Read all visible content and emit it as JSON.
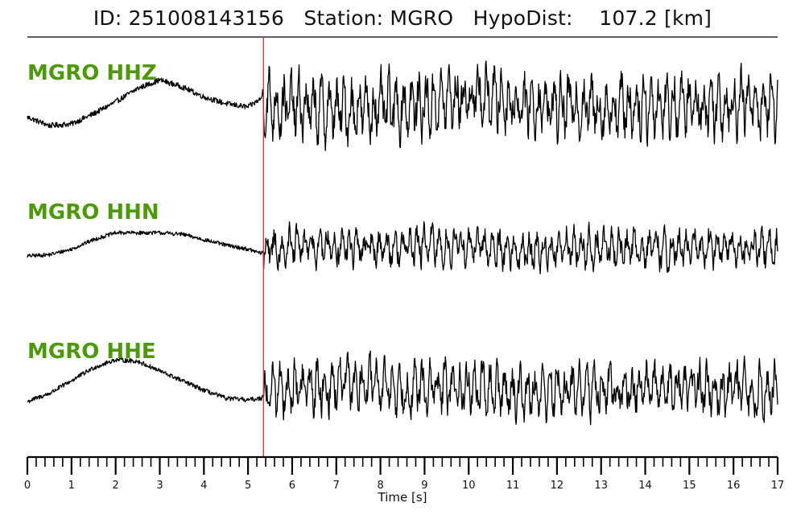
{
  "header": {
    "id_label": "ID: 251008143156",
    "station_label": "Station: MGRO",
    "hypodist_label": "HypoDist:",
    "hypodist_value": "107.2 [km]"
  },
  "chart_data": {
    "type": "line",
    "title": "ID: 251008143156   Station: MGRO   HypoDist:    107.2 [km]",
    "xlabel": "Time [s]",
    "ylabel": "",
    "xlim": [
      0,
      17
    ],
    "x_ticks": [
      0,
      1,
      2,
      3,
      4,
      5,
      6,
      7,
      8,
      9,
      10,
      11,
      12,
      13,
      14,
      15,
      16,
      17
    ],
    "minor_tick_step": 0.2,
    "grid": false,
    "legend": "none",
    "pick_time": 5.35,
    "pick_color": "#e8281e",
    "trace_color": "#000000",
    "label_color": "#4c9a0a",
    "series": [
      {
        "name": "MGRO HHZ",
        "x": [
          0,
          0.5,
          1,
          1.5,
          2,
          2.5,
          3,
          3.5,
          4,
          4.5,
          5,
          5.3,
          5.35,
          5.5,
          6,
          6.5,
          7,
          7.5,
          8,
          8.5,
          9,
          9.5,
          10,
          10.5,
          11,
          11.5,
          12,
          12.5,
          13,
          13.5,
          14,
          14.5,
          15,
          15.5,
          16,
          16.5,
          17
        ],
        "values": [
          -0.3,
          -0.55,
          -0.5,
          -0.2,
          0.15,
          0.55,
          0.8,
          0.6,
          0.3,
          0.1,
          0.0,
          0.25,
          0.6,
          0.3,
          0.0,
          -0.2,
          -0.3,
          -0.1,
          -0.2,
          0.1,
          0.2,
          0.6,
          0.9,
          0.9,
          0.5,
          0.2,
          0.1,
          0.2,
          -0.05,
          0.1,
          0.3,
          0.2,
          0.1,
          0.3,
          0.4,
          0.3,
          0.35
        ],
        "noise_pre": 0.08,
        "noise_post": 1.0
      },
      {
        "name": "MGRO HHN",
        "x": [
          0,
          0.5,
          1,
          1.5,
          2,
          2.5,
          3,
          3.5,
          4,
          4.5,
          5,
          5.3,
          5.35,
          5.5,
          6,
          6.5,
          7,
          7.5,
          8,
          8.5,
          9,
          9.5,
          10,
          10.5,
          11,
          11.5,
          12,
          12.5,
          13,
          13.5,
          14,
          14.5,
          15,
          15.5,
          16,
          16.5,
          17
        ],
        "values": [
          -0.3,
          -0.25,
          -0.05,
          0.3,
          0.55,
          0.55,
          0.55,
          0.5,
          0.3,
          0.1,
          -0.05,
          -0.2,
          -0.15,
          0.0,
          0.05,
          0.1,
          0.15,
          0.05,
          0.1,
          0.2,
          0.25,
          0.2,
          0.1,
          0.0,
          -0.3,
          -0.4,
          -0.1,
          0.0,
          0.0,
          0.05,
          0.0,
          -0.2,
          -0.1,
          0.0,
          0.0,
          -0.05,
          -0.1
        ],
        "noise_pre": 0.07,
        "noise_post": 0.75
      },
      {
        "name": "MGRO HHE",
        "x": [
          0,
          0.5,
          1,
          1.5,
          2,
          2.5,
          3,
          3.5,
          4,
          4.5,
          5,
          5.3,
          5.35,
          5.5,
          6,
          6.5,
          7,
          7.5,
          8,
          8.5,
          9,
          9.5,
          10,
          10.5,
          11,
          11.5,
          12,
          12.5,
          13,
          13.5,
          14,
          14.5,
          15,
          15.5,
          16,
          16.5,
          17
        ],
        "values": [
          -0.35,
          -0.1,
          0.3,
          0.7,
          0.95,
          0.9,
          0.6,
          0.3,
          0.0,
          -0.25,
          -0.3,
          -0.25,
          -0.1,
          0.0,
          0.2,
          0.3,
          0.45,
          0.55,
          0.4,
          0.3,
          0.1,
          0.2,
          0.3,
          0.0,
          -0.1,
          -0.1,
          0.0,
          -0.05,
          0.0,
          0.1,
          0.3,
          0.35,
          0.45,
          0.2,
          0.0,
          -0.1,
          -0.1
        ],
        "noise_pre": 0.07,
        "noise_post": 0.85
      }
    ]
  }
}
